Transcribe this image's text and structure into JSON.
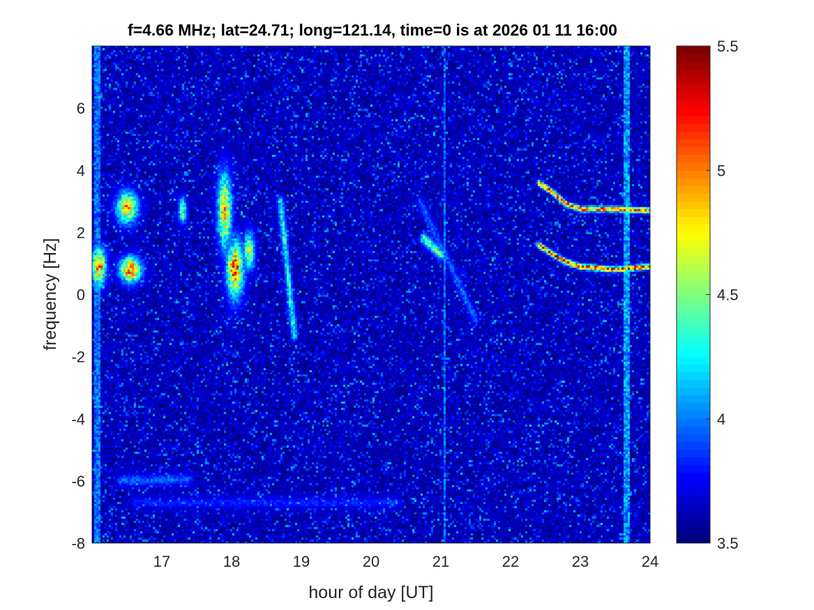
{
  "chart_data": {
    "type": "heatmap",
    "title": "f=4.66 MHz;  lat=24.71; long=121.14, time=0 is at 2026 01 11 16:00",
    "xlabel": "hour of day [UT]",
    "ylabel": "frequency [Hz]",
    "xlim": [
      16,
      24
    ],
    "ylim": [
      -8,
      8
    ],
    "x_ticks": [
      17,
      18,
      19,
      20,
      21,
      22,
      23,
      24
    ],
    "x_tick_labels": [
      "17",
      "18",
      "19",
      "20",
      "21",
      "22",
      "23",
      "24"
    ],
    "y_ticks": [
      -8,
      -6,
      -4,
      -2,
      0,
      2,
      4,
      6
    ],
    "y_tick_labels": [
      "-8",
      "-6",
      "-4",
      "-2",
      "0",
      "2",
      "4",
      "6"
    ],
    "colorbar": {
      "colormap": "jet",
      "range": [
        3.5,
        5.5
      ],
      "ticks": [
        3.5,
        4,
        4.5,
        5,
        5.5
      ],
      "tick_labels": [
        "3.5",
        "4",
        "4.5",
        "5",
        "5.5"
      ]
    },
    "background_level": 3.6,
    "features": [
      {
        "kind": "vertical-band",
        "x": 16.07,
        "width": 0.08,
        "level": 4.0
      },
      {
        "kind": "vertical-band",
        "x": 23.67,
        "width": 0.08,
        "level": 4.1
      },
      {
        "kind": "vertical-line",
        "x": 21.05,
        "width": 0.02,
        "level": 4.0
      },
      {
        "kind": "blob",
        "x": 16.1,
        "y": 0.9,
        "sx": 0.1,
        "sy": 0.6,
        "level": 5.2
      },
      {
        "kind": "blob",
        "x": 16.5,
        "y": 2.8,
        "sx": 0.15,
        "sy": 0.5,
        "level": 5.1
      },
      {
        "kind": "blob",
        "x": 16.55,
        "y": 0.8,
        "sx": 0.15,
        "sy": 0.4,
        "level": 5.3
      },
      {
        "kind": "blob",
        "x": 17.3,
        "y": 2.7,
        "sx": 0.06,
        "sy": 0.4,
        "level": 4.6
      },
      {
        "kind": "blob",
        "x": 17.9,
        "y": 2.7,
        "sx": 0.1,
        "sy": 1.2,
        "level": 5.0
      },
      {
        "kind": "blob",
        "x": 18.05,
        "y": 0.8,
        "sx": 0.12,
        "sy": 0.9,
        "level": 5.3
      },
      {
        "kind": "blob",
        "x": 18.25,
        "y": 1.4,
        "sx": 0.08,
        "sy": 0.6,
        "level": 4.8
      },
      {
        "kind": "streak",
        "x0": 18.7,
        "y0": 3.0,
        "x1": 18.9,
        "y1": -1.3,
        "level": 4.4
      },
      {
        "kind": "streak",
        "x0": 20.7,
        "y0": 3.0,
        "x1": 21.5,
        "y1": -0.8,
        "level": 4.0
      },
      {
        "kind": "streak",
        "x0": 20.75,
        "y0": 1.8,
        "x1": 21.0,
        "y1": 1.3,
        "level": 4.6
      },
      {
        "kind": "trace",
        "points": [
          [
            22.4,
            3.6
          ],
          [
            22.6,
            3.3
          ],
          [
            22.8,
            2.9
          ],
          [
            23.0,
            2.75
          ],
          [
            23.5,
            2.75
          ],
          [
            24.0,
            2.7
          ]
        ],
        "level": 5.3
      },
      {
        "kind": "trace",
        "points": [
          [
            22.4,
            1.6
          ],
          [
            22.6,
            1.3
          ],
          [
            22.8,
            1.05
          ],
          [
            23.0,
            0.9
          ],
          [
            23.5,
            0.8
          ],
          [
            24.0,
            0.9
          ]
        ],
        "level": 5.4
      },
      {
        "kind": "streak",
        "x0": 16.4,
        "y0": -6.0,
        "x1": 17.4,
        "y1": -5.95,
        "level": 4.0
      },
      {
        "kind": "streak",
        "x0": 16.6,
        "y0": -6.7,
        "x1": 20.4,
        "y1": -6.7,
        "level": 3.85
      }
    ]
  }
}
